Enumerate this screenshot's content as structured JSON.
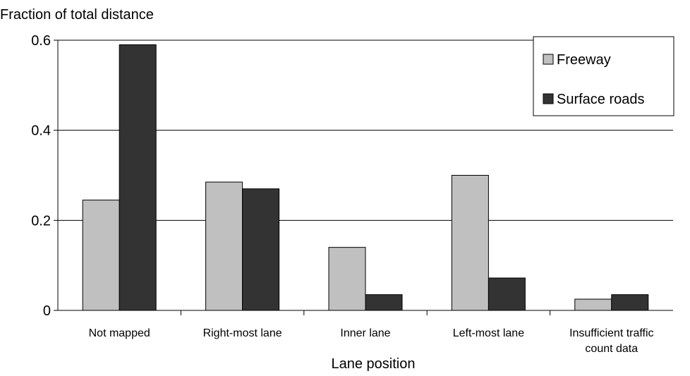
{
  "chart_data": {
    "type": "bar",
    "title": "",
    "ylabel": "Fraction of total distance",
    "xlabel": "Lane position",
    "ylim": [
      0,
      0.6
    ],
    "yticks": [
      0,
      0.2,
      0.4,
      0.6
    ],
    "ytick_labels": [
      "0",
      "0.2",
      "0.4",
      "0.6"
    ],
    "grid": true,
    "legend_position": "top-right",
    "categories": [
      [
        "Not mapped"
      ],
      [
        "Right-most lane"
      ],
      [
        "Inner lane"
      ],
      [
        "Left-most lane"
      ],
      [
        "Insufficient traffic",
        "count data"
      ]
    ],
    "series": [
      {
        "name": "Freeway",
        "color": "#c0c0c0",
        "values": [
          0.245,
          0.285,
          0.14,
          0.3,
          0.025
        ]
      },
      {
        "name": "Surface roads",
        "color": "#333333",
        "values": [
          0.59,
          0.27,
          0.035,
          0.072,
          0.035
        ]
      }
    ]
  }
}
